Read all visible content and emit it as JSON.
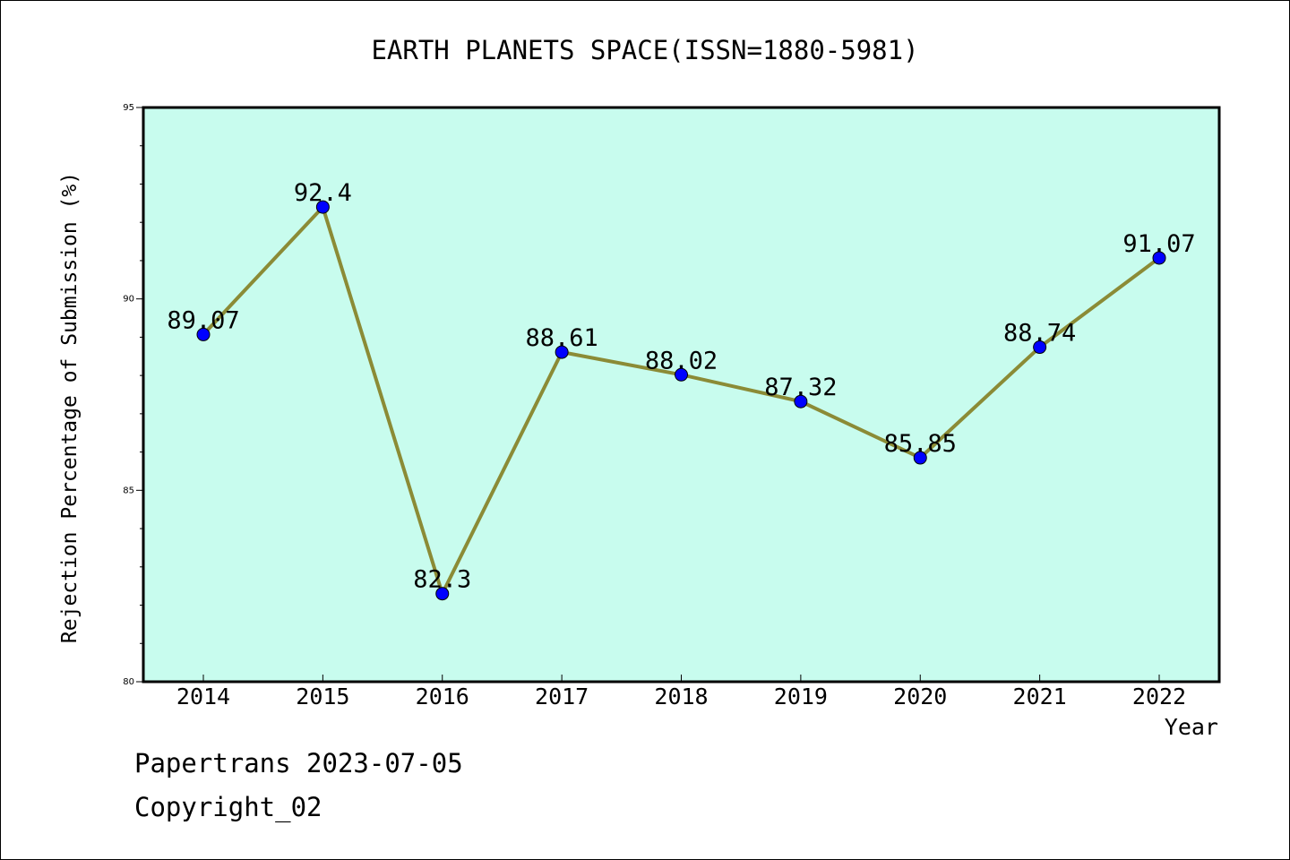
{
  "chart_data": {
    "type": "line",
    "title": "EARTH PLANETS SPACE(ISSN=1880-5981)",
    "xlabel": "Year",
    "ylabel": "Rejection Percentage of Submission (%)",
    "categories": [
      "2014",
      "2015",
      "2016",
      "2017",
      "2018",
      "2019",
      "2020",
      "2021",
      "2022"
    ],
    "series": [
      {
        "values": [
          89.07,
          92.4,
          82.3,
          88.61,
          88.02,
          87.32,
          85.85,
          88.74,
          91.07
        ],
        "labels": [
          "89.07",
          "92.4",
          "82.3",
          "88.61",
          "88.02",
          "87.32",
          "85.85",
          "88.74",
          "91.07"
        ]
      }
    ],
    "ylim": [
      80,
      95
    ],
    "yticks": [
      "80",
      "85",
      "90",
      "95"
    ],
    "grid": false,
    "legend": "none",
    "colors": {
      "plot_background": "#c8fcee",
      "line": "#8b8b36",
      "marker": "#0000ff"
    }
  },
  "footer": {
    "line1": "Papertrans 2023-07-05",
    "line2": "Copyright_02"
  }
}
